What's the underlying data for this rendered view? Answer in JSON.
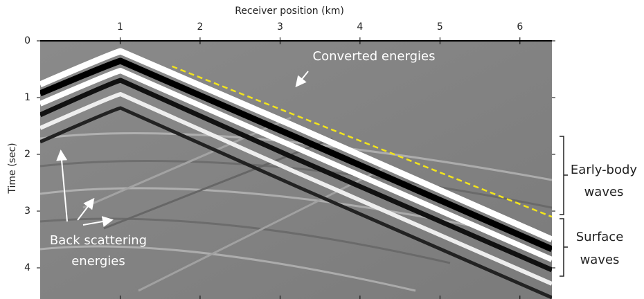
{
  "chart_data": {
    "type": "image",
    "xlabel": "Receiver position (km)",
    "ylabel": "Time (sec)",
    "xlim": [
      0,
      6.4
    ],
    "ylim": [
      0,
      4.5
    ],
    "xticks": [
      1,
      2,
      3,
      4,
      5,
      6
    ],
    "yticks": [
      0,
      1,
      2,
      3,
      4
    ],
    "overlay_line": {
      "x": [
        1.65,
        6.4
      ],
      "y": [
        0.45,
        3.1
      ],
      "color": "#f2e41c"
    },
    "annotations": [
      {
        "lines": [
          "Converted energies"
        ]
      },
      {
        "lines": [
          "Back scattering",
          "energies"
        ]
      },
      {
        "lines": [
          "Early-body",
          "waves"
        ]
      },
      {
        "lines": [
          "Surface",
          "waves"
        ]
      }
    ]
  }
}
